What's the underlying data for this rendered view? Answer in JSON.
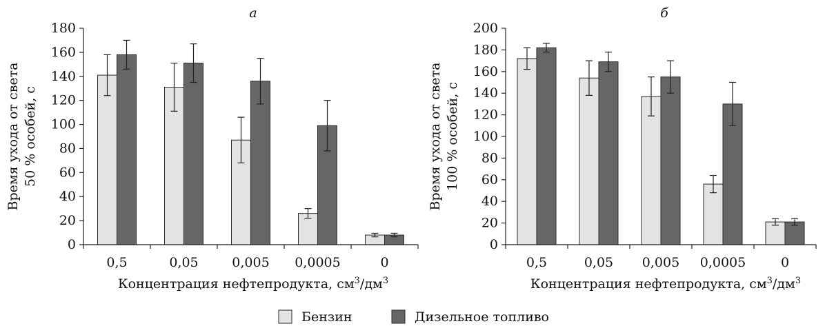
{
  "colors": {
    "benzin": "#e3e3e3",
    "diesel": "#666666",
    "bar_outline": "#2a2a2a"
  },
  "legend": {
    "position": "bottom-center",
    "items": [
      {
        "label": "Бензин",
        "color": "#e3e3e3"
      },
      {
        "label": "Дизельное топливо",
        "color": "#666666"
      }
    ]
  },
  "chart_data": [
    {
      "type": "bar",
      "title": "a",
      "xlabel_main": "Концентрация нефтепродукта, см",
      "xlabel_sup1": "3",
      "xlabel_mid": "/дм",
      "xlabel_sup2": "3",
      "ylabel_line1": "Время ухода от света",
      "ylabel_line2": "50 % особей, с",
      "categories": [
        "0,5",
        "0,05",
        "0,005",
        "0,0005",
        "0"
      ],
      "ylim": [
        0,
        180
      ],
      "yticks": [
        0,
        20,
        40,
        60,
        80,
        100,
        120,
        140,
        160,
        180
      ],
      "series": [
        {
          "name": "Бензин",
          "values": [
            141,
            131,
            87,
            26,
            8
          ],
          "error": [
            17,
            20,
            19,
            4,
            1.5
          ]
        },
        {
          "name": "Дизельное топливо",
          "values": [
            158,
            151,
            136,
            99,
            8
          ],
          "error": [
            12,
            16,
            19,
            21,
            1.5
          ]
        }
      ]
    },
    {
      "type": "bar",
      "title": "б",
      "xlabel_main": "Концентрация нефтепродукта, см",
      "xlabel_sup1": "3",
      "xlabel_mid": "/дм",
      "xlabel_sup2": "3",
      "ylabel_line1": "Время ухода от света",
      "ylabel_line2": "100 % особей, с",
      "categories": [
        "0,5",
        "0,05",
        "0,005",
        "0,0005",
        "0"
      ],
      "ylim": [
        0,
        200
      ],
      "yticks": [
        0,
        20,
        40,
        60,
        80,
        100,
        120,
        140,
        160,
        180,
        200
      ],
      "series": [
        {
          "name": "Бензин",
          "values": [
            172,
            154,
            137,
            56,
            21
          ],
          "error": [
            10,
            16,
            18,
            8,
            3
          ]
        },
        {
          "name": "Дизельное топливо",
          "values": [
            182,
            169,
            155,
            130,
            21
          ],
          "error": [
            4,
            9,
            15,
            20,
            3
          ]
        }
      ]
    }
  ]
}
